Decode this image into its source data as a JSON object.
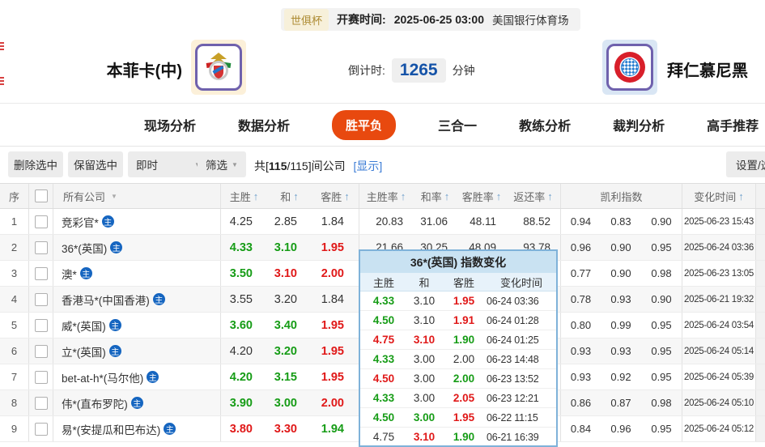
{
  "colors": {
    "accent_orange": "#e8490f",
    "odds_red": "#e01818",
    "odds_green": "#169c16",
    "countdown_blue": "#1553a8",
    "link_blue": "#3a7bd5",
    "badge_blue": "#1565c0",
    "popup_border": "#7fb2d9",
    "league_gold": "#ad8b33"
  },
  "icons": {
    "primary_badge": "主",
    "sort_arrow": "↑",
    "caret_down": "▼"
  },
  "match_header": {
    "league_badge": "世俱杯",
    "kickoff_label": "开赛时间:",
    "kickoff_time": "2025-06-25 03:00",
    "venue": "美国银行体育场",
    "home_team": "本菲卡(中)",
    "away_team": "拜仁慕尼黑",
    "countdown_label": "倒计时:",
    "countdown_value": "1265",
    "countdown_unit": "分钟"
  },
  "nav": {
    "tabs": [
      {
        "label": "现场分析",
        "active": false
      },
      {
        "label": "数据分析",
        "active": false
      },
      {
        "label": "胜平负",
        "active": true
      },
      {
        "label": "三合一",
        "active": false
      },
      {
        "label": "教练分析",
        "active": false
      },
      {
        "label": "裁判分析",
        "active": false
      },
      {
        "label": "高手推荐",
        "active": false
      }
    ]
  },
  "toolbar": {
    "delete_btn": "删除选中",
    "keep_btn": "保留选中",
    "instant_select": "即时",
    "filter_btn": "筛选",
    "count_prefix": "共[",
    "count_bold": "115",
    "count_suffix": "/115]间公司",
    "show_link": "[显示]",
    "settings_btn": "设置/选择"
  },
  "table": {
    "headers": {
      "seq": "序",
      "company": "所有公司",
      "odds_home": "主胜",
      "odds_draw": "和",
      "odds_away": "客胜",
      "rate_home": "主胜率",
      "rate_draw": "和率",
      "rate_away": "客胜率",
      "return_rate": "返还率",
      "kelly": "凯利指数",
      "time": "变化时间"
    },
    "rows": [
      {
        "seq": "1",
        "company": "竞彩官*",
        "odds": [
          {
            "v": "4.25",
            "c": "k"
          },
          {
            "v": "2.85",
            "c": "k"
          },
          {
            "v": "1.84",
            "c": "k"
          }
        ],
        "rates": [
          "20.83",
          "31.06",
          "48.11",
          "88.52"
        ],
        "kelly": [
          "0.94",
          "0.83",
          "0.90"
        ],
        "time": "2025-06-23 15:43"
      },
      {
        "seq": "2",
        "company": "36*(英国)",
        "odds": [
          {
            "v": "4.33",
            "c": "g"
          },
          {
            "v": "3.10",
            "c": "g"
          },
          {
            "v": "1.95",
            "c": "r"
          }
        ],
        "rates": [
          "21.66",
          "30.25",
          "48.09",
          "93.78"
        ],
        "kelly": [
          "0.96",
          "0.90",
          "0.95"
        ],
        "time": "2025-06-24 03:36"
      },
      {
        "seq": "3",
        "company": "澳*",
        "odds": [
          {
            "v": "3.50",
            "c": "g"
          },
          {
            "v": "3.10",
            "c": "r"
          },
          {
            "v": "2.00",
            "c": "r"
          }
        ],
        "rates": [
          "",
          "",
          "",
          ""
        ],
        "kelly": [
          "0.77",
          "0.90",
          "0.98"
        ],
        "time": "2025-06-23 13:05"
      },
      {
        "seq": "4",
        "company": "香港马*(中国香港)",
        "odds": [
          {
            "v": "3.55",
            "c": "k"
          },
          {
            "v": "3.20",
            "c": "k"
          },
          {
            "v": "1.84",
            "c": "k"
          }
        ],
        "rates": [
          "",
          "",
          "",
          ""
        ],
        "kelly": [
          "0.78",
          "0.93",
          "0.90"
        ],
        "time": "2025-06-21 19:32"
      },
      {
        "seq": "5",
        "company": "威*(英国)",
        "odds": [
          {
            "v": "3.60",
            "c": "g"
          },
          {
            "v": "3.40",
            "c": "g"
          },
          {
            "v": "1.95",
            "c": "r"
          }
        ],
        "rates": [
          "",
          "",
          "",
          ""
        ],
        "kelly": [
          "0.80",
          "0.99",
          "0.95"
        ],
        "time": "2025-06-24 03:54"
      },
      {
        "seq": "6",
        "company": "立*(英国)",
        "odds": [
          {
            "v": "4.20",
            "c": "k"
          },
          {
            "v": "3.20",
            "c": "g"
          },
          {
            "v": "1.95",
            "c": "r"
          }
        ],
        "rates": [
          "",
          "",
          "",
          ""
        ],
        "kelly": [
          "0.93",
          "0.93",
          "0.95"
        ],
        "time": "2025-06-24 05:14"
      },
      {
        "seq": "7",
        "company": "bet-at-h*(马尔他)",
        "odds": [
          {
            "v": "4.20",
            "c": "g"
          },
          {
            "v": "3.15",
            "c": "g"
          },
          {
            "v": "1.95",
            "c": "r"
          }
        ],
        "rates": [
          "",
          "",
          "",
          ""
        ],
        "kelly": [
          "0.93",
          "0.92",
          "0.95"
        ],
        "time": "2025-06-24 05:39"
      },
      {
        "seq": "8",
        "company": "伟*(直布罗陀)",
        "odds": [
          {
            "v": "3.90",
            "c": "g"
          },
          {
            "v": "3.00",
            "c": "g"
          },
          {
            "v": "2.00",
            "c": "r"
          }
        ],
        "rates": [
          "",
          "",
          "",
          ""
        ],
        "kelly": [
          "0.86",
          "0.87",
          "0.98"
        ],
        "time": "2025-06-24 05:10"
      },
      {
        "seq": "9",
        "company": "易*(安提瓜和巴布达)",
        "odds": [
          {
            "v": "3.80",
            "c": "r"
          },
          {
            "v": "3.30",
            "c": "r"
          },
          {
            "v": "1.94",
            "c": "g"
          }
        ],
        "rates": [
          "",
          "",
          "",
          ""
        ],
        "kelly": [
          "0.84",
          "0.96",
          "0.95"
        ],
        "time": "2025-06-24 05:12"
      }
    ],
    "partial_row_visible": true
  },
  "popup": {
    "title": "36*(英国) 指数变化",
    "headers": [
      "主胜",
      "和",
      "客胜",
      "变化时间"
    ],
    "rows": [
      {
        "home": {
          "v": "4.33",
          "c": "g"
        },
        "draw": {
          "v": "3.10",
          "c": "k"
        },
        "away": {
          "v": "1.95",
          "c": "r"
        },
        "time": "06-24 03:36"
      },
      {
        "home": {
          "v": "4.50",
          "c": "g"
        },
        "draw": {
          "v": "3.10",
          "c": "k"
        },
        "away": {
          "v": "1.91",
          "c": "r"
        },
        "time": "06-24 01:28"
      },
      {
        "home": {
          "v": "4.75",
          "c": "r"
        },
        "draw": {
          "v": "3.10",
          "c": "r"
        },
        "away": {
          "v": "1.90",
          "c": "g"
        },
        "time": "06-24 01:25"
      },
      {
        "home": {
          "v": "4.33",
          "c": "g"
        },
        "draw": {
          "v": "3.00",
          "c": "k"
        },
        "away": {
          "v": "2.00",
          "c": "k"
        },
        "time": "06-23 14:48"
      },
      {
        "home": {
          "v": "4.50",
          "c": "r"
        },
        "draw": {
          "v": "3.00",
          "c": "k"
        },
        "away": {
          "v": "2.00",
          "c": "g"
        },
        "time": "06-23 13:52"
      },
      {
        "home": {
          "v": "4.33",
          "c": "g"
        },
        "draw": {
          "v": "3.00",
          "c": "k"
        },
        "away": {
          "v": "2.05",
          "c": "r"
        },
        "time": "06-23 12:21"
      },
      {
        "home": {
          "v": "4.50",
          "c": "g"
        },
        "draw": {
          "v": "3.00",
          "c": "g"
        },
        "away": {
          "v": "1.95",
          "c": "r"
        },
        "time": "06-22 11:15"
      },
      {
        "home": {
          "v": "4.75",
          "c": "k"
        },
        "draw": {
          "v": "3.10",
          "c": "r"
        },
        "away": {
          "v": "1.90",
          "c": "g"
        },
        "time": "06-21 16:39"
      }
    ]
  }
}
